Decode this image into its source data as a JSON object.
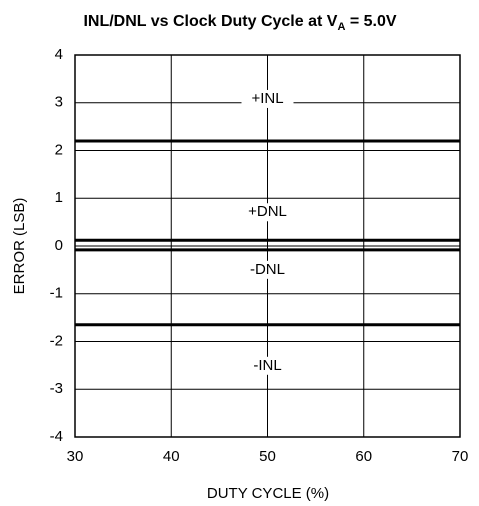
{
  "chart_data": {
    "type": "line",
    "title": [
      "INL/DNL vs Clock Duty Cycle at V",
      "A",
      " = 5.0V"
    ],
    "xlabel": "DUTY CYCLE (%)",
    "ylabel": "ERROR (LSB)",
    "x": [
      30,
      40,
      50,
      60,
      70
    ],
    "series": [
      {
        "name": "+INL",
        "color": "#000000",
        "values": [
          2.2,
          2.2,
          2.2,
          2.2,
          2.2
        ]
      },
      {
        "name": "+DNL",
        "color": "#000000",
        "values": [
          0.12,
          0.12,
          0.12,
          0.12,
          0.12
        ]
      },
      {
        "name": "-DNL",
        "color": "#000000",
        "values": [
          -0.08,
          -0.08,
          -0.08,
          -0.08,
          -0.08
        ]
      },
      {
        "name": "-INL",
        "color": "#000000",
        "values": [
          -1.65,
          -1.65,
          -1.65,
          -1.65,
          -1.65
        ]
      }
    ],
    "xlim": [
      30,
      70
    ],
    "xticks": [
      30,
      40,
      50,
      60,
      70
    ],
    "ylim": [
      -4,
      4
    ],
    "yticks": [
      -4,
      -3,
      -2,
      -1,
      0,
      1,
      2,
      3,
      4
    ],
    "grid": true
  }
}
